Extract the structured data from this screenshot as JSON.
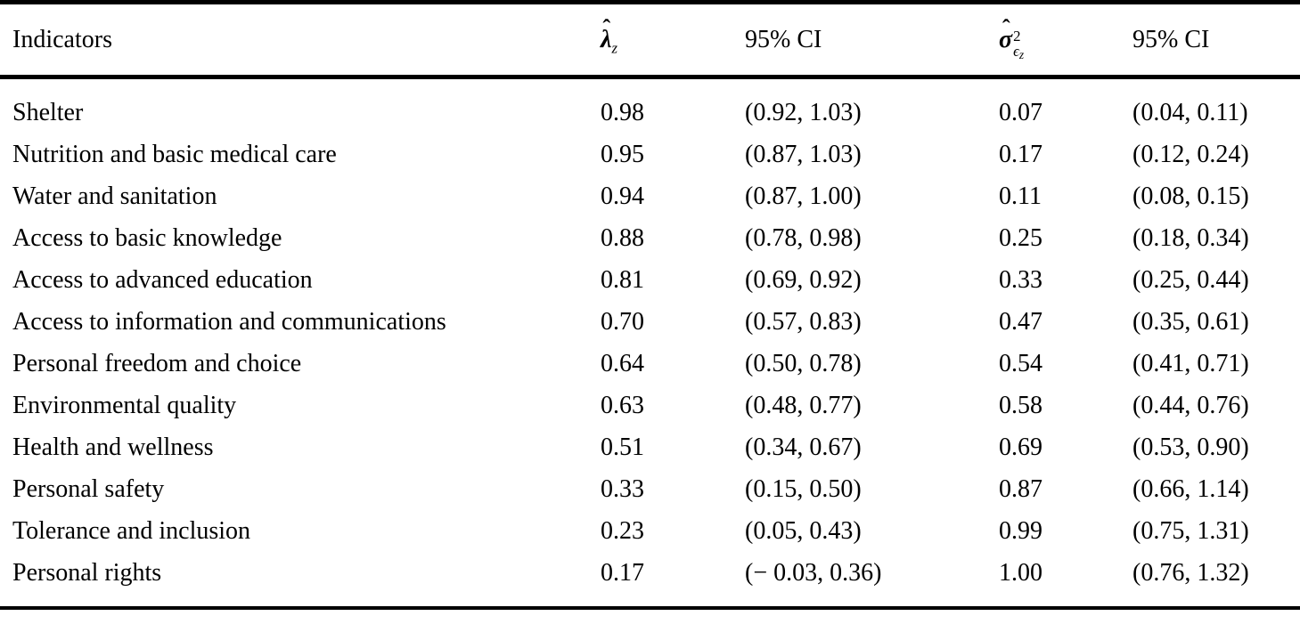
{
  "table": {
    "columns": [
      {
        "label": "Indicators"
      },
      {
        "symbol": "λ",
        "hat": "ˆ",
        "subscript": "z"
      },
      {
        "label": "95% CI"
      },
      {
        "symbol": "σ",
        "hat": "ˆ",
        "superscript": "2",
        "subscript_base": "ϵ",
        "subscript_sub": "z"
      },
      {
        "label": "95% CI"
      }
    ],
    "rows": [
      {
        "indicator": "Shelter",
        "lambda": "0.98",
        "lambda_ci": "(0.92, 1.03)",
        "sigma2": "0.07",
        "sigma2_ci": "(0.04, 0.11)"
      },
      {
        "indicator": "Nutrition and basic medical care",
        "lambda": "0.95",
        "lambda_ci": "(0.87, 1.03)",
        "sigma2": "0.17",
        "sigma2_ci": "(0.12, 0.24)"
      },
      {
        "indicator": "Water and sanitation",
        "lambda": "0.94",
        "lambda_ci": "(0.87, 1.00)",
        "sigma2": "0.11",
        "sigma2_ci": "(0.08, 0.15)"
      },
      {
        "indicator": "Access to basic knowledge",
        "lambda": "0.88",
        "lambda_ci": "(0.78, 0.98)",
        "sigma2": "0.25",
        "sigma2_ci": "(0.18, 0.34)"
      },
      {
        "indicator": "Access to advanced education",
        "lambda": "0.81",
        "lambda_ci": "(0.69, 0.92)",
        "sigma2": "0.33",
        "sigma2_ci": "(0.25, 0.44)"
      },
      {
        "indicator": "Access to information and communications",
        "lambda": "0.70",
        "lambda_ci": "(0.57, 0.83)",
        "sigma2": "0.47",
        "sigma2_ci": "(0.35, 0.61)"
      },
      {
        "indicator": "Personal freedom and choice",
        "lambda": "0.64",
        "lambda_ci": "(0.50, 0.78)",
        "sigma2": "0.54",
        "sigma2_ci": "(0.41, 0.71)"
      },
      {
        "indicator": "Environmental quality",
        "lambda": "0.63",
        "lambda_ci": "(0.48, 0.77)",
        "sigma2": "0.58",
        "sigma2_ci": "(0.44, 0.76)"
      },
      {
        "indicator": "Health and wellness",
        "lambda": "0.51",
        "lambda_ci": "(0.34, 0.67)",
        "sigma2": "0.69",
        "sigma2_ci": "(0.53, 0.90)"
      },
      {
        "indicator": "Personal safety",
        "lambda": "0.33",
        "lambda_ci": "(0.15, 0.50)",
        "sigma2": "0.87",
        "sigma2_ci": "(0.66, 1.14)"
      },
      {
        "indicator": "Tolerance and inclusion",
        "lambda": "0.23",
        "lambda_ci": "(0.05, 0.43)",
        "sigma2": "0.99",
        "sigma2_ci": "(0.75, 1.31)"
      },
      {
        "indicator": "Personal rights",
        "lambda": "0.17",
        "lambda_ci": "(− 0.03, 0.36)",
        "sigma2": "1.00",
        "sigma2_ci": "(0.76, 1.32)"
      }
    ]
  }
}
